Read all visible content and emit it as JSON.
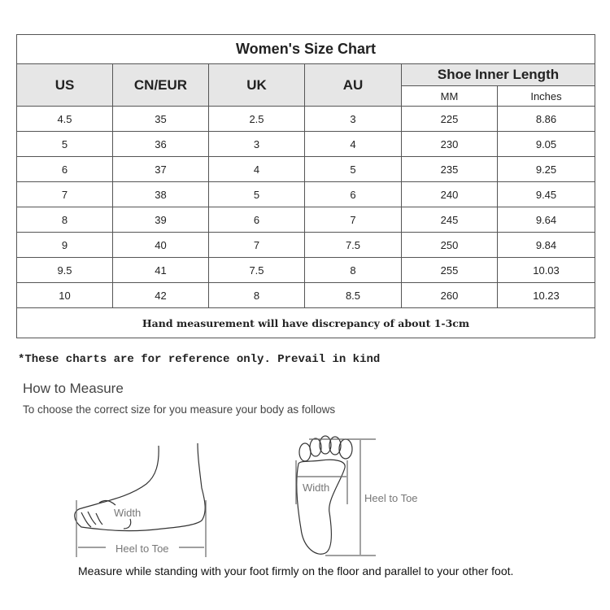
{
  "title": "Women's Size Chart",
  "headers": {
    "us": "US",
    "cn_eur": "CN/EUR",
    "uk": "UK",
    "au": "AU",
    "inner": "Shoe Inner Length",
    "mm": "MM",
    "inches": "Inches"
  },
  "rows": [
    [
      "4.5",
      "35",
      "2.5",
      "3",
      "225",
      "8.86"
    ],
    [
      "5",
      "36",
      "3",
      "4",
      "230",
      "9.05"
    ],
    [
      "6",
      "37",
      "4",
      "5",
      "235",
      "9.25"
    ],
    [
      "7",
      "38",
      "5",
      "6",
      "240",
      "9.45"
    ],
    [
      "8",
      "39",
      "6",
      "7",
      "245",
      "9.64"
    ],
    [
      "9",
      "40",
      "7",
      "7.5",
      "250",
      "9.84"
    ],
    [
      "9.5",
      "41",
      "7.5",
      "8",
      "255",
      "10.03"
    ],
    [
      "10",
      "42",
      "8",
      "8.5",
      "260",
      "10.23"
    ]
  ],
  "footer": "Hand measurement will have discrepancy of about 1-3cm",
  "note": "*These charts are for reference only. Prevail in kind",
  "how": {
    "title": "How to Measure",
    "subtitle": "To choose the correct size for you measure your body as follows",
    "side_width": "Width",
    "side_length": "Heel to Toe",
    "top_width": "Width",
    "top_length": "Heel to Toe",
    "caption": "Measure while standing with your foot firmly on the floor and parallel to your other foot."
  }
}
